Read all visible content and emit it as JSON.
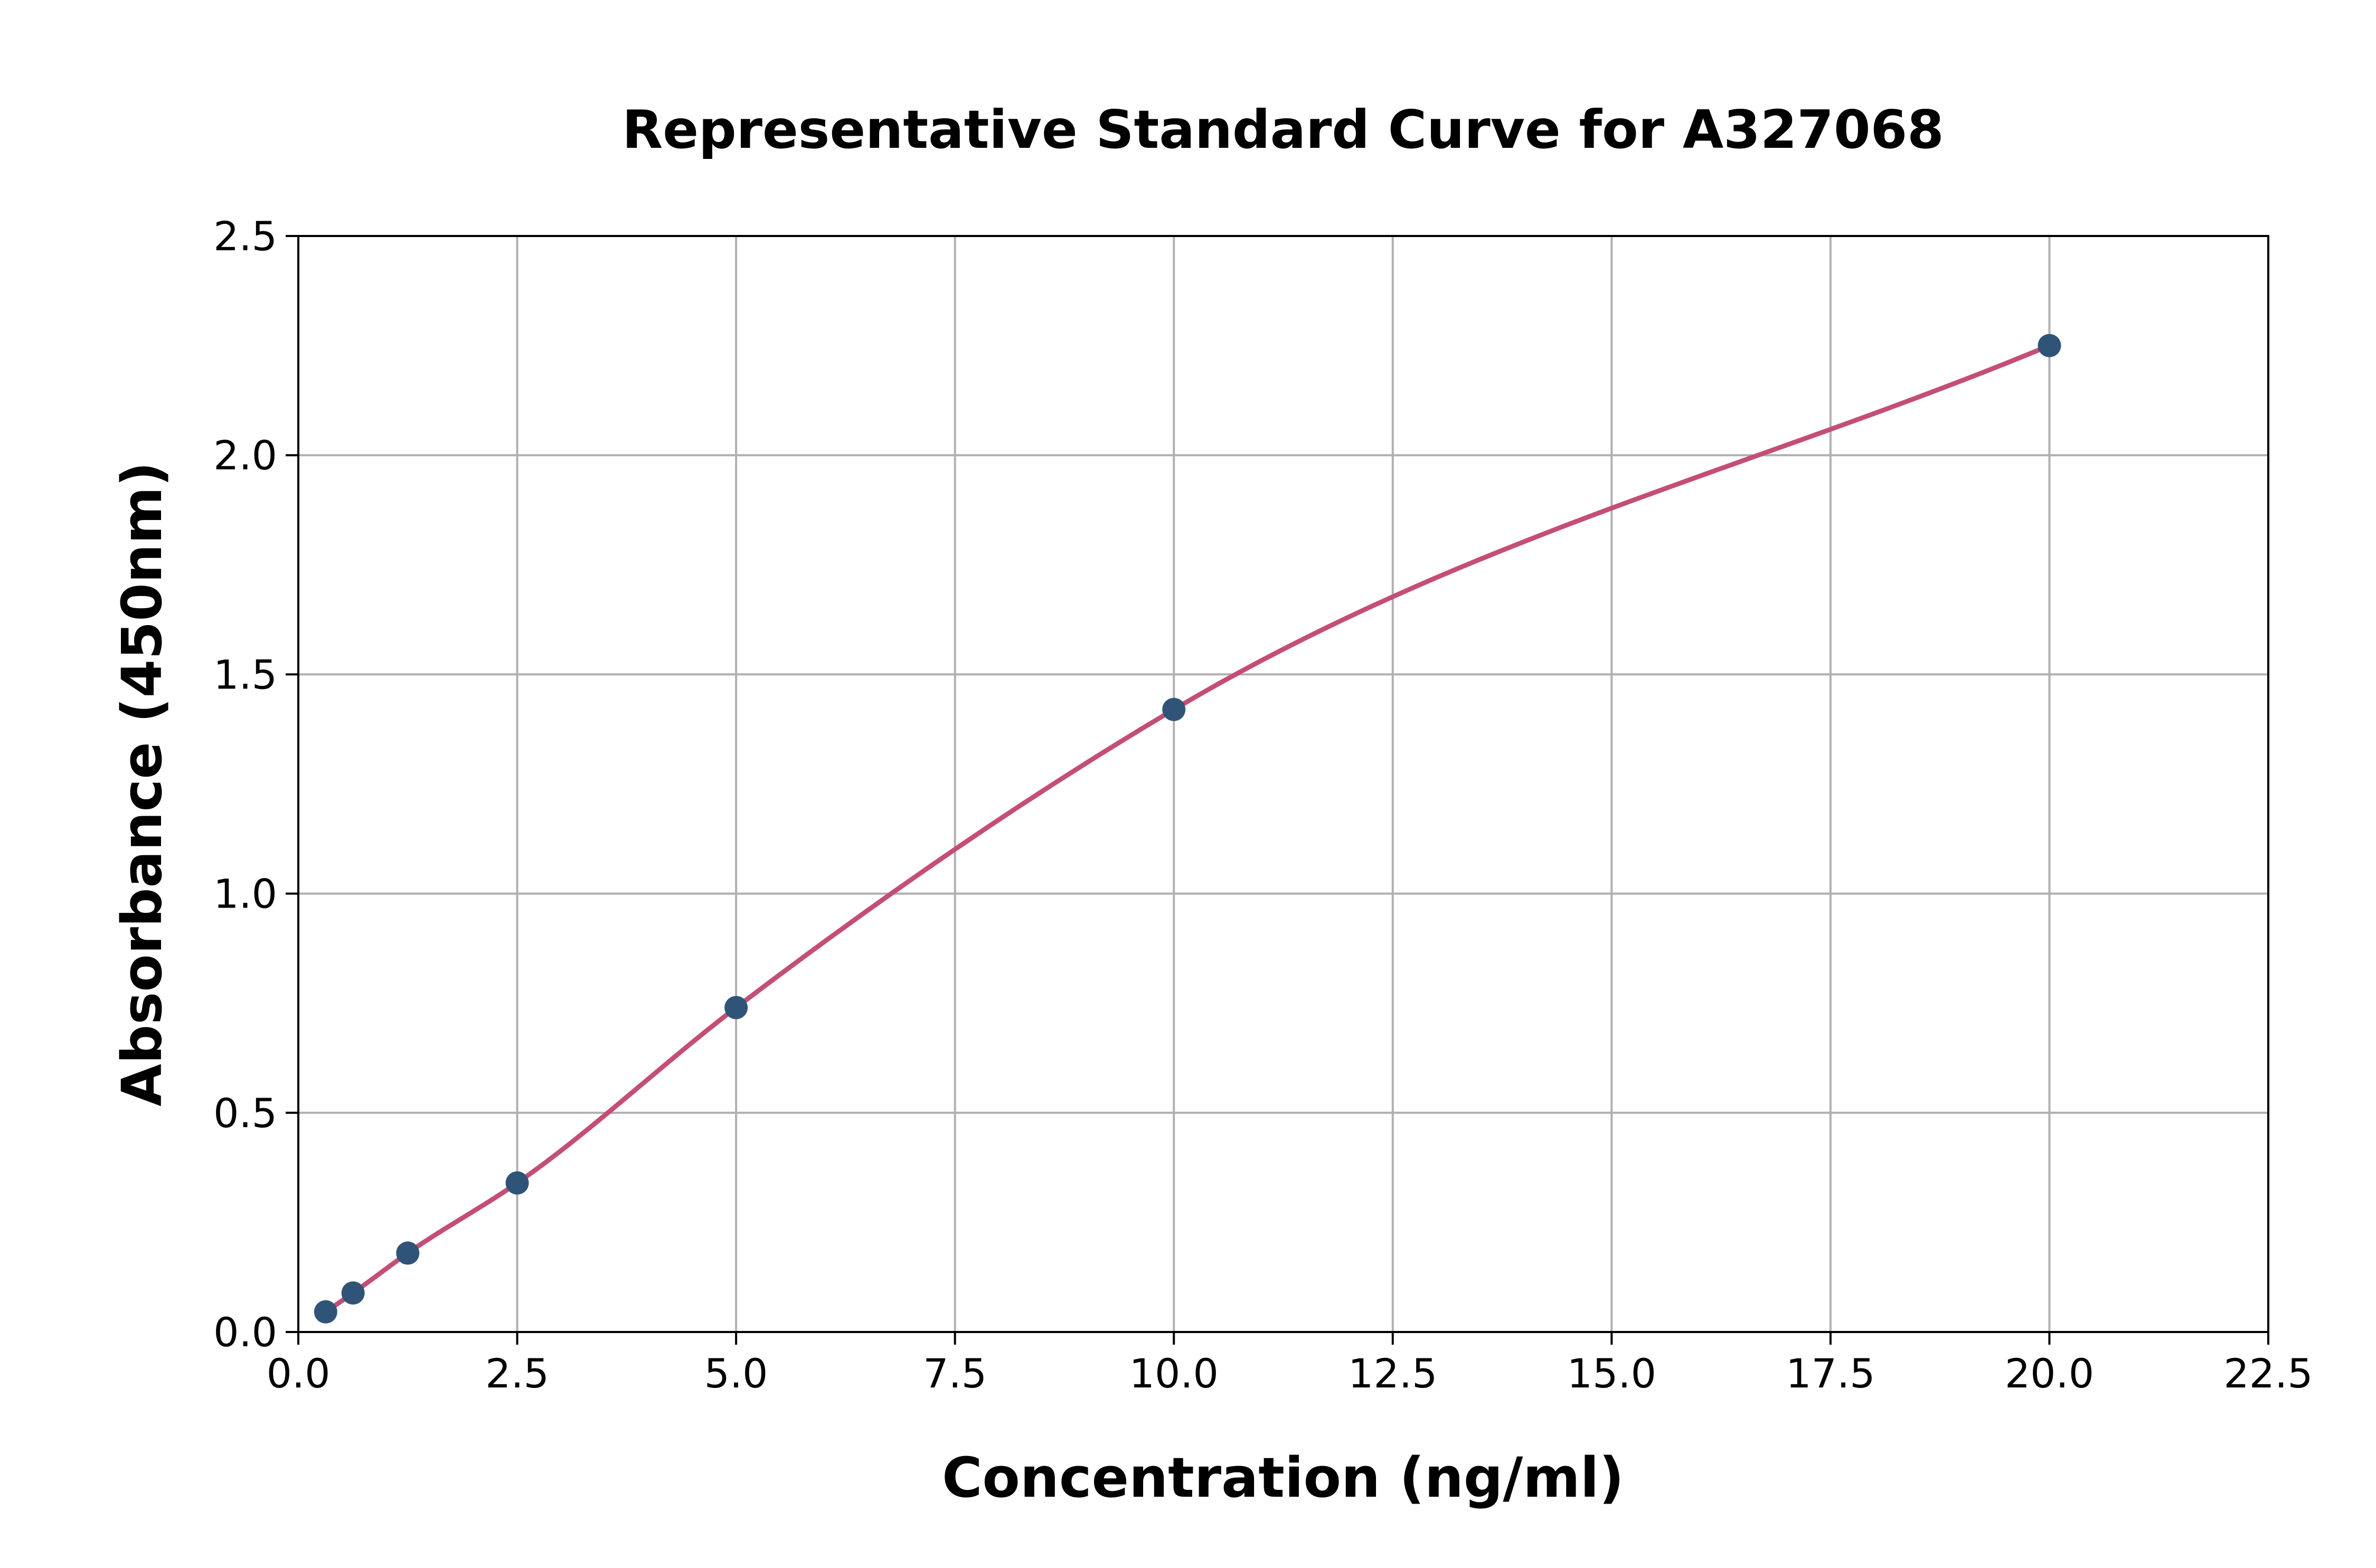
{
  "chart_data": {
    "type": "scatter",
    "title": "Representative Standard Curve for A327068",
    "xlabel": "Concentration (ng/ml)",
    "ylabel": "Absorbance (450nm)",
    "xlim": [
      0,
      22.5
    ],
    "ylim": [
      0,
      2.5
    ],
    "xticks": [
      "0.0",
      "2.5",
      "5.0",
      "7.5",
      "10.0",
      "12.5",
      "15.0",
      "17.5",
      "20.0",
      "22.5"
    ],
    "yticks": [
      "0.0",
      "0.5",
      "1.0",
      "1.5",
      "2.0",
      "2.5"
    ],
    "grid": true,
    "points": {
      "x": [
        0.3125,
        0.625,
        1.25,
        2.5,
        5,
        10,
        20
      ],
      "y": [
        0.046,
        0.089,
        0.18,
        0.34,
        0.74,
        1.42,
        2.25
      ]
    },
    "fit_curve": "smooth standard curve through points",
    "colors": {
      "points": "#2f5478",
      "curve": "#c44e76",
      "grid": "#b0b0b0"
    }
  }
}
